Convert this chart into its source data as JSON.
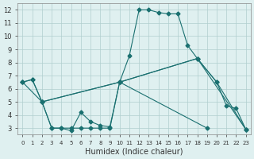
{
  "background_color": "#dff0f0",
  "grid_color": "#b0cece",
  "line_color": "#1a7070",
  "xlabel": "Humidex (Indice chaleur)",
  "xlim": [
    -0.5,
    23.5
  ],
  "ylim": [
    2.5,
    12.5
  ],
  "xticks": [
    0,
    1,
    2,
    3,
    4,
    5,
    6,
    7,
    8,
    9,
    10,
    11,
    12,
    13,
    14,
    15,
    16,
    17,
    18,
    19,
    20,
    21,
    22,
    23
  ],
  "yticks": [
    3,
    4,
    5,
    6,
    7,
    8,
    9,
    10,
    11,
    12
  ],
  "line1_x": [
    0,
    1,
    2,
    3,
    4,
    5,
    6,
    7,
    8,
    9,
    10,
    11,
    12,
    13,
    14,
    15,
    16,
    17,
    18,
    20,
    21,
    22,
    23
  ],
  "line1_y": [
    6.5,
    6.7,
    5.0,
    3.0,
    3.0,
    2.8,
    4.2,
    3.5,
    3.2,
    3.1,
    6.5,
    8.5,
    12.0,
    12.0,
    11.8,
    11.7,
    11.7,
    9.3,
    8.3,
    6.5,
    4.7,
    4.5,
    2.9
  ],
  "line2_x": [
    0,
    2,
    10,
    18,
    20,
    23
  ],
  "line2_y": [
    6.5,
    5.0,
    6.5,
    8.3,
    6.5,
    2.9
  ],
  "line3_x": [
    0,
    1,
    2,
    3,
    4,
    5,
    6,
    7,
    8,
    9,
    10,
    19
  ],
  "line3_y": [
    6.5,
    6.7,
    5.0,
    3.0,
    3.0,
    3.0,
    3.0,
    3.0,
    3.0,
    3.0,
    6.5,
    3.0
  ],
  "line4_x": [
    2,
    10,
    18,
    23
  ],
  "line4_y": [
    5.0,
    6.5,
    8.3,
    2.9
  ]
}
